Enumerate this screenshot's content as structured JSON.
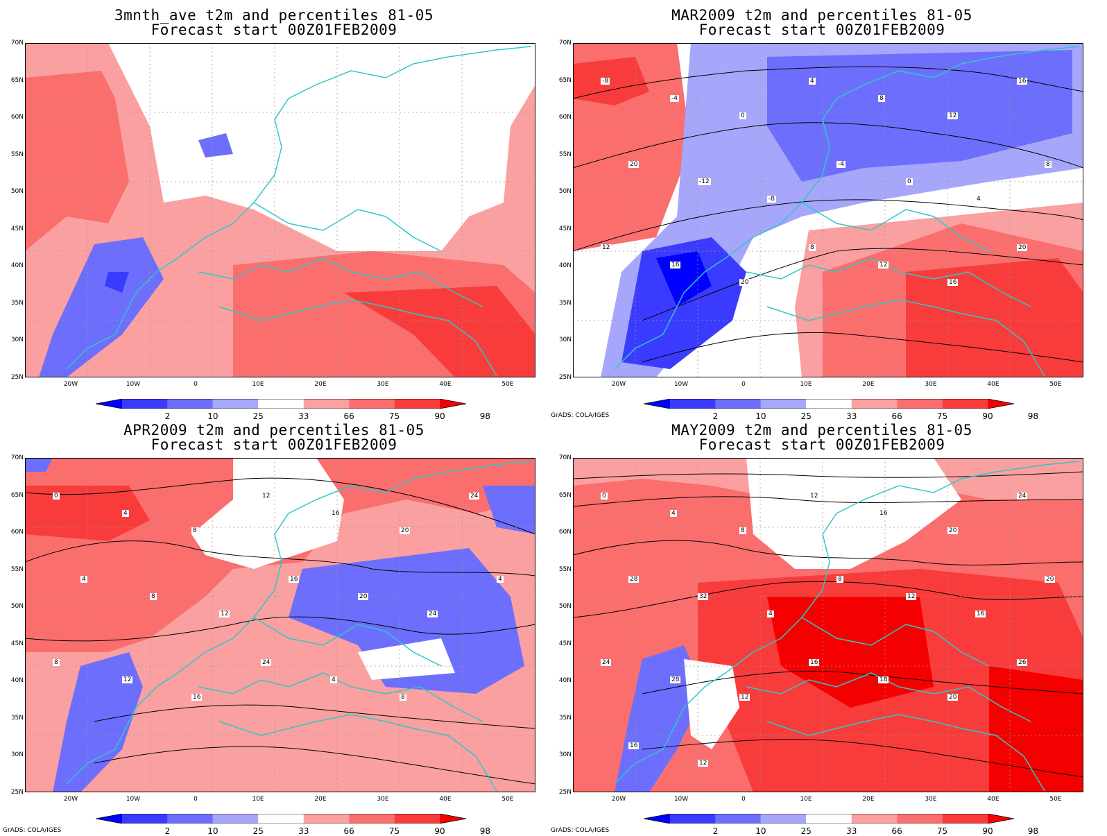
{
  "credit": "GrADS: COLA/IGES",
  "lat_labels": [
    "70N",
    "65N",
    "60N",
    "55N",
    "50N",
    "45N",
    "40N",
    "35N",
    "30N",
    "25N"
  ],
  "lon_labels": [
    "20W",
    "10W",
    "0",
    "10E",
    "20E",
    "30E",
    "40E",
    "50E"
  ],
  "colorbar": {
    "labels": [
      "2",
      "10",
      "25",
      "33",
      "66",
      "75",
      "90",
      "98"
    ],
    "colors": [
      "#0000ff",
      "#3b3bff",
      "#6e6efc",
      "#a6a6fa",
      "#ffffff",
      "#faa0a0",
      "#fa6e6e",
      "#f83c3c",
      "#f50000"
    ]
  },
  "panels": [
    {
      "title": "3mnth_ave t2m and percentiles 81-05",
      "subtitle": "Forecast start 00Z01FEB2009",
      "show_credit": false,
      "contour_labels": []
    },
    {
      "title": "MAR2009 t2m and percentiles 81-05",
      "subtitle": "Forecast start 00Z01FEB2009",
      "show_credit": true,
      "contour_labels": [
        "-8",
        "-4",
        "0",
        "4",
        "8",
        "12",
        "16",
        "20",
        "-12",
        "-8",
        "-4",
        "0",
        "4",
        "8",
        "12",
        "16",
        "20",
        "8",
        "12",
        "16",
        "20"
      ]
    },
    {
      "title": "APR2009 t2m and percentiles 81-05",
      "subtitle": "Forecast start 00Z01FEB2009",
      "show_credit": true,
      "contour_labels": [
        "0",
        "4",
        "8",
        "12",
        "16",
        "20",
        "24",
        "4",
        "8",
        "12",
        "16",
        "20",
        "24",
        "4",
        "8",
        "12",
        "16",
        "24",
        "4",
        "8"
      ]
    },
    {
      "title": "MAY2009 t2m and percentiles 81-05",
      "subtitle": "Forecast start 00Z01FEB2009",
      "show_credit": true,
      "contour_labels": [
        "0",
        "4",
        "8",
        "12",
        "16",
        "20",
        "24",
        "28",
        "32",
        "4",
        "8",
        "12",
        "16",
        "20",
        "24",
        "28",
        "12",
        "16",
        "18",
        "20",
        "26",
        "16",
        "12"
      ]
    }
  ]
}
